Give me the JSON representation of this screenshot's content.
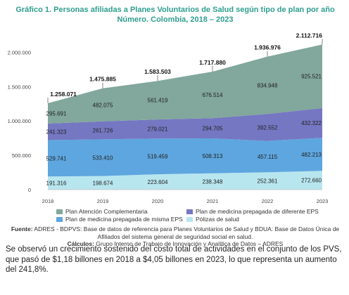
{
  "header": {
    "title_line1": "Gráfico 1.  Personas afiliadas a Planes Voluntarios de Salud según tipo de plan por año",
    "title_line2": "Número. Colombia, 2018 – 2023"
  },
  "chart_data": {
    "type": "area",
    "stacked": true,
    "x": [
      "2018",
      "2019",
      "2020",
      "2021",
      "2022",
      "2023"
    ],
    "ylim": [
      0,
      2250000
    ],
    "yticks": [
      "0",
      "500.000",
      "1.000.000",
      "1.500.000",
      "2.000.000"
    ],
    "ytick_values": [
      0,
      500000,
      1000000,
      1500000,
      2000000
    ],
    "grid": false,
    "legend_position": "bottom",
    "series": [
      {
        "name": "Pólizas de salud",
        "color": "#b8e6ef",
        "values": [
          191316,
          198674,
          223604,
          238348,
          252361,
          272660
        ],
        "labels": [
          "191.316",
          "198.674",
          "223.604",
          "238.348",
          "252.361",
          "272.660"
        ]
      },
      {
        "name": "Plan de medicina prepagada de misma EPS",
        "color": "#5ea6df",
        "values": [
          529741,
          533410,
          519459,
          508313,
          457115,
          482213
        ],
        "labels": [
          "529.741",
          "533.410",
          "519.459",
          "508.313",
          "457.115",
          "482.213"
        ]
      },
      {
        "name": "Plan de medicina prepagada de diferente EPS",
        "color": "#7577c2",
        "values": [
          241323,
          261726,
          279021,
          294705,
          392552,
          432322
        ],
        "labels": [
          "241.323",
          "261.726",
          "279.021",
          "294.705",
          "392.552",
          "432.322"
        ]
      },
      {
        "name": "Plan Atención Complementaria",
        "color": "#82a79c",
        "values": [
          295691,
          482075,
          561419,
          676514,
          834948,
          925521
        ],
        "labels": [
          "295.691",
          "482.075",
          "561.419",
          "676.514",
          "834.948",
          "925.521"
        ]
      }
    ],
    "totals": [
      1258071,
      1475885,
      1583503,
      1717880,
      1936976,
      2112716
    ],
    "total_labels": [
      "1.258.071",
      "1.475.885",
      "1.583.503",
      "1.717.880",
      "1.936.976",
      "2.112.716"
    ]
  },
  "legend": {
    "items": [
      {
        "label": "Plan Atención Complementaria",
        "color": "#82a79c"
      },
      {
        "label": "Plan de medicina prepagada de diferente EPS",
        "color": "#7577c2"
      },
      {
        "label": "Plan de medicina prepagada de misma EPS",
        "color": "#5ea6df"
      },
      {
        "label": "Pólizas de salud",
        "color": "#b8e6ef"
      }
    ]
  },
  "source": {
    "fuente_label": "Fuente:",
    "fuente_text": " ADRES - BDPVS: Base de datos de referencia para Planes Voluntarios de Salud y BDUA: Base de Datos Única de Afiliados del sistema general de seguridad social en salud.",
    "calculos_label": "Cálculos:",
    "calculos_text": " Grupo Interno de Trabajo de Innovación y Analítica de Datos – ADRES"
  },
  "paragraph": "Se observó un crecimiento sostenido del costo total de actividades en el conjunto de los PVS, que pasó de $1,18 billones en 2018 a $4,05 billones en 2023, lo que representa un aumento del 241,8%."
}
